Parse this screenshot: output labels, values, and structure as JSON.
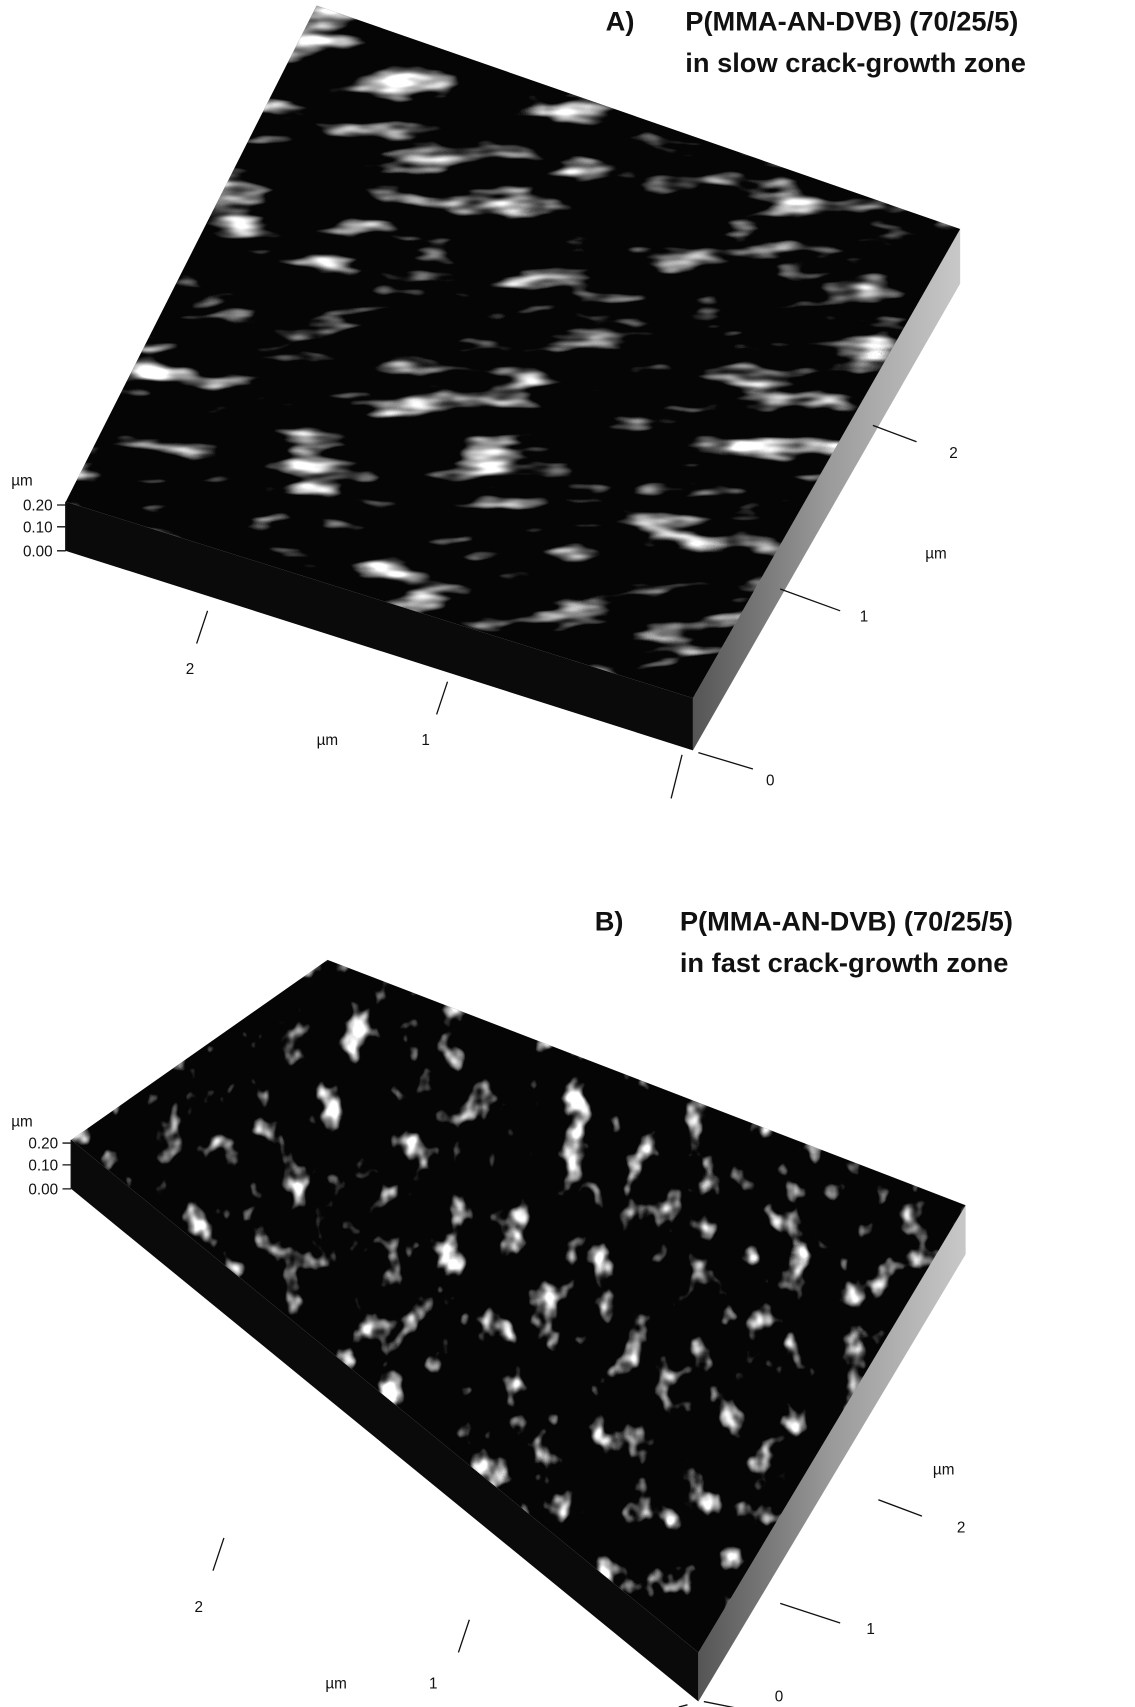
{
  "panels": [
    {
      "label": "A)",
      "title": [
        "P(MMA-AN-DVB) (70/25/5)",
        "in slow crack-growth zone"
      ],
      "z_axis": {
        "unit": "µm",
        "ticks": [
          "0.20",
          "0.10",
          "0.00"
        ]
      },
      "x_axis": {
        "unit": "µm",
        "ticks": [
          "2",
          "1"
        ]
      },
      "y_axis": {
        "unit": "µm",
        "ticks": [
          "2",
          "1",
          "0"
        ]
      }
    },
    {
      "label": "B)",
      "title": [
        "P(MMA-AN-DVB) (70/25/5)",
        "in fast crack-growth zone"
      ],
      "z_axis": {
        "unit": "µm",
        "ticks": [
          "0.20",
          "0.10",
          "0.00"
        ]
      },
      "x_axis": {
        "unit": "µm",
        "ticks": [
          "2",
          "1"
        ]
      },
      "y_axis": {
        "unit": "µm",
        "ticks": [
          "2",
          "1",
          "0"
        ]
      }
    }
  ]
}
